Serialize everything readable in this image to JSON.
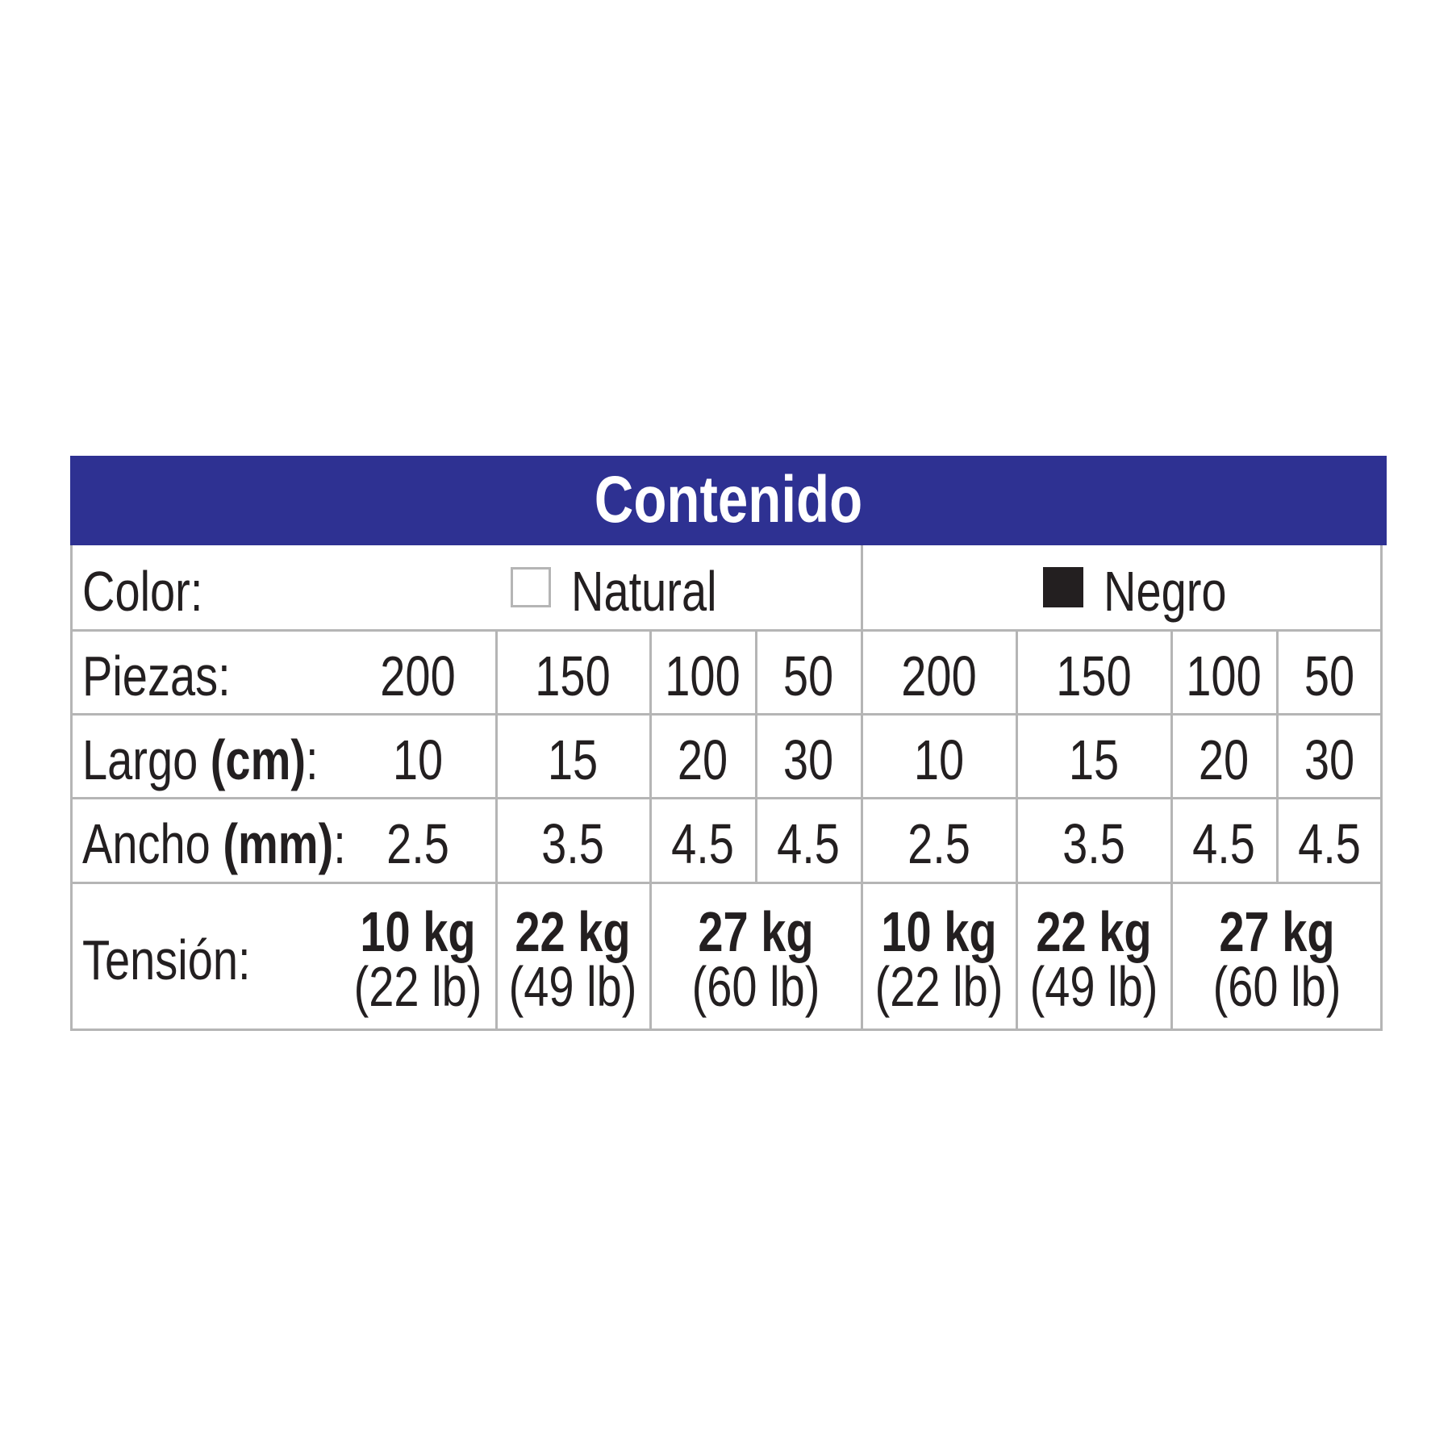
{
  "title": "Contenido",
  "header_color": "#2e3192",
  "rows": {
    "color": {
      "label": "Color:",
      "options": [
        {
          "name": "Natural",
          "swatch": "#ffffff"
        },
        {
          "name": "Negro",
          "swatch": "#231f20"
        }
      ]
    },
    "piezas": {
      "label": "Piezas:",
      "values": [
        "200",
        "150",
        "100",
        "50",
        "200",
        "150",
        "100",
        "50"
      ]
    },
    "largo": {
      "label": "Largo ",
      "unit": "(cm)",
      "suffix": ":",
      "values": [
        "10",
        "15",
        "20",
        "30",
        "10",
        "15",
        "20",
        "30"
      ]
    },
    "ancho": {
      "label": "Ancho ",
      "unit": "(mm)",
      "suffix": ":",
      "values": [
        "2.5",
        "3.5",
        "4.5",
        "4.5",
        "2.5",
        "3.5",
        "4.5",
        "4.5"
      ]
    },
    "tension": {
      "label": "Tensión:",
      "values": [
        {
          "kg": "10 kg",
          "lb": "(22 lb)"
        },
        {
          "kg": "22 kg",
          "lb": "(49 lb)"
        },
        {
          "kg": "27 kg",
          "lb": "(60 lb)"
        },
        {
          "kg": "10 kg",
          "lb": "(22 lb)"
        },
        {
          "kg": "22 kg",
          "lb": "(49 lb)"
        },
        {
          "kg": "27 kg",
          "lb": "(60 lb)"
        }
      ]
    }
  }
}
